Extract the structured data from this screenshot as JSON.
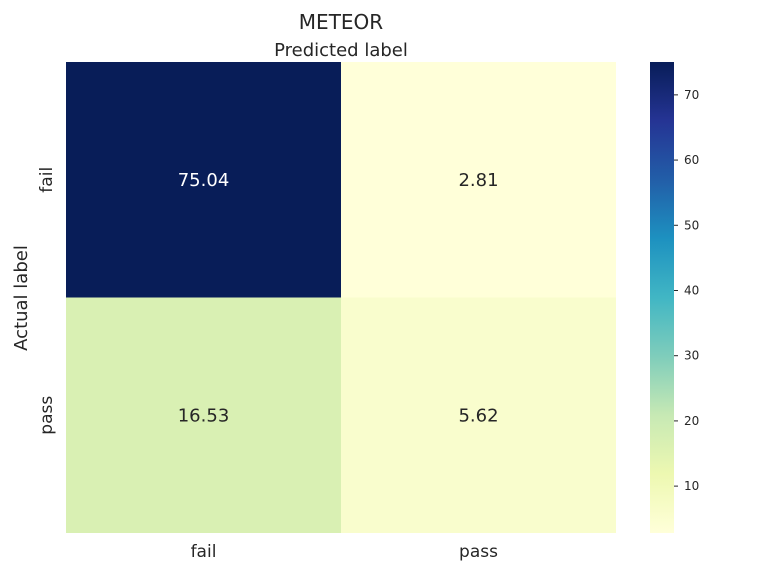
{
  "chart_data": {
    "type": "heatmap",
    "title": "METEOR",
    "xlabel": "Predicted label",
    "ylabel": "Actual label",
    "x_categories": [
      "fail",
      "pass"
    ],
    "y_categories": [
      "fail",
      "pass"
    ],
    "values": [
      [
        75.04,
        2.81
      ],
      [
        16.53,
        5.62
      ]
    ],
    "colormap": "YlGnBu",
    "color_range": [
      2.81,
      75.04
    ],
    "colorbar_ticks": [
      10,
      20,
      30,
      40,
      50,
      60,
      70
    ],
    "grid": false,
    "legend": "colorbar-right"
  }
}
